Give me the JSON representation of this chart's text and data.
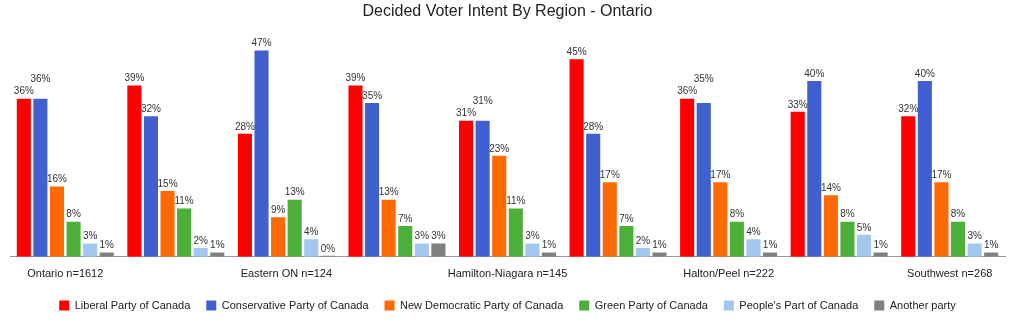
{
  "chart_data": {
    "type": "bar",
    "title": "Decided Voter Intent By Region - Ontario",
    "categories": [
      "Ontario n=1612",
      null,
      "Eastern ON n=124",
      null,
      "Hamilton-Niagara n=145",
      null,
      "Halton/Peel n=222",
      null,
      "Southwest n=268"
    ],
    "series": [
      {
        "name": "Liberal Party of Canada",
        "color": "#fe0000",
        "values": [
          36,
          39,
          28,
          39,
          31,
          45,
          36,
          33,
          32
        ],
        "value_labels": [
          "36%",
          "39%",
          "28%",
          "39%",
          "31%",
          "45%",
          "36%",
          "33%",
          "32%"
        ]
      },
      {
        "name": "Conservative Party of Canada",
        "color": "#4060d0",
        "values": [
          36,
          32,
          47,
          35,
          31,
          28,
          35,
          40,
          40
        ],
        "value_labels": [
          "36%",
          "32%",
          "47%",
          "35%",
          "31%",
          "28%",
          "35%",
          "40%",
          "40%"
        ]
      },
      {
        "name": "New Democratic Party of Canada",
        "color": "#ff6a00",
        "values": [
          16,
          15,
          9,
          13,
          23,
          17,
          17,
          14,
          17
        ],
        "value_labels": [
          "16%",
          "15%",
          "9%",
          "13%",
          "23%",
          "17%",
          "17%",
          "14%",
          "17%"
        ]
      },
      {
        "name": "Green Party of Canada",
        "color": "#4caf3a",
        "values": [
          8,
          11,
          13,
          7,
          11,
          7,
          8,
          8,
          8
        ],
        "value_labels": [
          "8%",
          "11%",
          "13%",
          "7%",
          "11%",
          "7%",
          "8%",
          "8%",
          "8%"
        ]
      },
      {
        "name": "People's Part of Canada",
        "color": "#a2c8f0",
        "values": [
          3,
          2,
          4,
          3,
          3,
          2,
          4,
          5,
          3
        ],
        "value_labels": [
          "3%",
          "2%",
          "4%",
          "3%",
          "3%",
          "2%",
          "4%",
          "5%",
          "3%"
        ]
      },
      {
        "name": "Another party",
        "color": "#808080",
        "values": [
          1,
          1,
          0,
          3,
          1,
          1,
          1,
          1,
          1
        ],
        "value_labels": [
          "1%",
          "1%",
          "0%",
          "3%",
          "1%",
          "1%",
          "1%",
          "1%",
          "1%"
        ]
      }
    ],
    "legend": "bottom"
  }
}
